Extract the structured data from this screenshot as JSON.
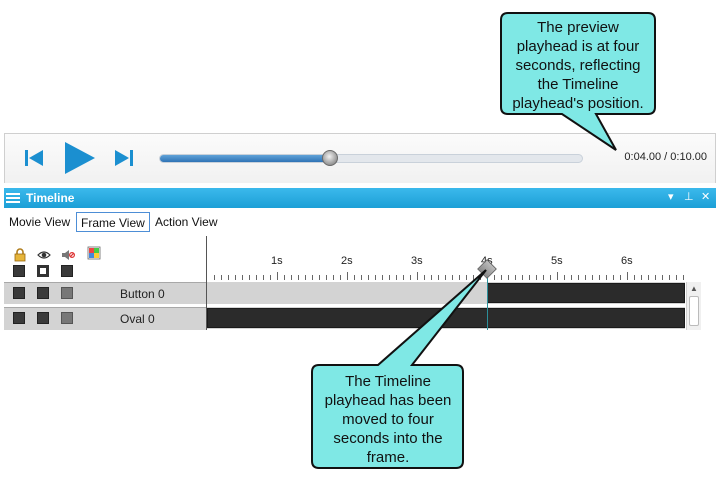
{
  "player": {
    "time_display": "0:04.00 / 0:10.00",
    "progress_fraction": 0.4,
    "icons": {
      "prev": "skip-back-icon",
      "play": "play-icon",
      "next": "skip-forward-icon"
    }
  },
  "timeline": {
    "title": "Timeline",
    "tabs": [
      {
        "label": "Movie View"
      },
      {
        "label": "Frame View"
      },
      {
        "label": "Action View"
      }
    ],
    "active_tab": "Frame View",
    "header_icons": [
      "lock-icon",
      "eye-icon",
      "sound-muted-icon",
      "color-grid-icon"
    ],
    "ruler_labels": [
      "1s",
      "2s",
      "3s",
      "4s",
      "5s",
      "6s"
    ],
    "playhead_seconds": 4,
    "rows": [
      {
        "label": "Button 0",
        "frame_start_seconds": 4
      },
      {
        "label": "Oval 0",
        "frame_start_seconds": 0
      }
    ]
  },
  "callouts": {
    "top": [
      "The preview",
      "playhead is at four",
      "seconds, reflecting",
      "the Timeline",
      "playhead's position."
    ],
    "bottom": [
      "The Timeline",
      "playhead has been",
      "moved to four",
      "seconds into the",
      "frame."
    ]
  },
  "colors": {
    "header": "#1c9fd6",
    "callout_fill": "#7fe8e5",
    "progress": "#2f73b6"
  }
}
